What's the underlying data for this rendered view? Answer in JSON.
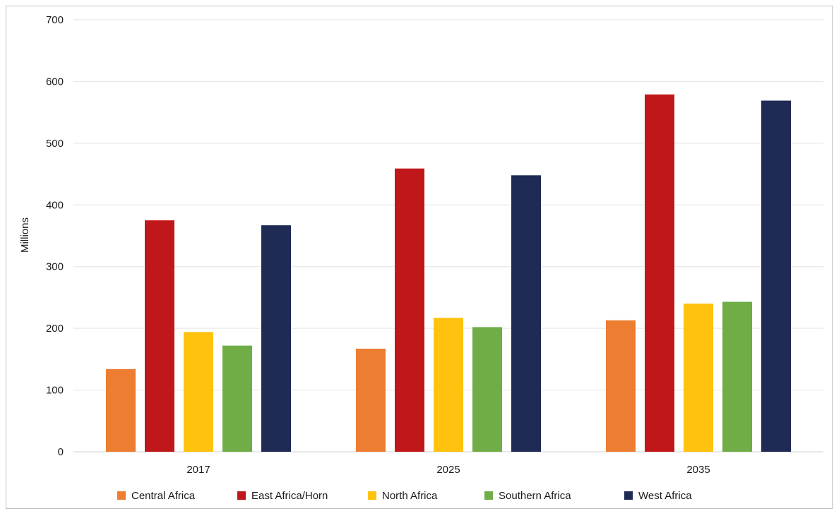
{
  "chart_data": {
    "type": "bar",
    "title": "",
    "xlabel": "",
    "ylabel": "Millions",
    "ylim": [
      0,
      700
    ],
    "yticks": [
      0,
      100,
      200,
      300,
      400,
      500,
      600,
      700
    ],
    "grid": true,
    "legend_position": "bottom",
    "categories": [
      "2017",
      "2025",
      "2035"
    ],
    "series": [
      {
        "name": "Central Africa",
        "color": "#ED7D31",
        "values": [
          134,
          167,
          213
        ]
      },
      {
        "name": "East Africa/Horn",
        "color": "#C0181A",
        "values": [
          375,
          459,
          579
        ]
      },
      {
        "name": "North Africa",
        "color": "#FFC20E",
        "values": [
          194,
          217,
          240
        ]
      },
      {
        "name": "Southern Africa",
        "color": "#70AD47",
        "values": [
          172,
          202,
          243
        ]
      },
      {
        "name": "West Africa",
        "color": "#1F2B55",
        "values": [
          367,
          448,
          569
        ]
      }
    ]
  }
}
